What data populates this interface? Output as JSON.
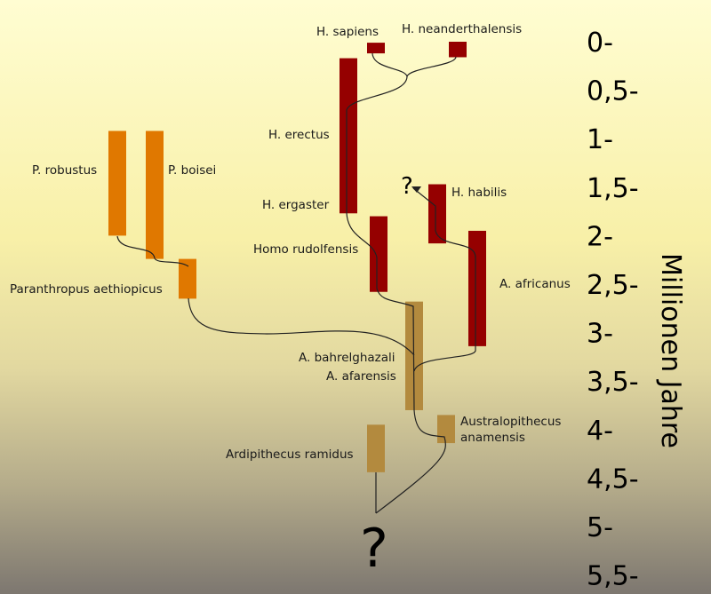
{
  "axis": {
    "label": "Millionen Jahre",
    "ticks": [
      "0-",
      "0,5-",
      "1-",
      "1,5-",
      "2-",
      "2,5-",
      "3-",
      "3,5-",
      "4-",
      "4,5-",
      "5-",
      "5,5-"
    ]
  },
  "colors": {
    "homo": "#950000",
    "paranthropus": "#e07800",
    "australopithecus": "#b38a3e",
    "lines": "#222222"
  },
  "species": [
    {
      "name": "H. sapiens",
      "group": "homo",
      "range_mya": [
        0.01,
        0.12
      ]
    },
    {
      "name": "H. neanderthalensis",
      "group": "homo",
      "range_mya": [
        0.0,
        0.16
      ]
    },
    {
      "name": "H. erectus",
      "group": "homo",
      "range_mya": [
        0.17,
        1.77
      ]
    },
    {
      "name": "H. ergaster",
      "group": "homo",
      "range_mya": null
    },
    {
      "name": "Homo rudolfensis",
      "group": "homo",
      "range_mya": [
        1.8,
        2.58
      ]
    },
    {
      "name": "H. habilis",
      "group": "homo",
      "range_mya": [
        1.47,
        2.08
      ]
    },
    {
      "name": "A. africanus",
      "group": "homo",
      "range_mya": [
        1.95,
        3.14
      ]
    },
    {
      "name": "A. bahrelghazali",
      "group": "australopithecus",
      "range_mya": null
    },
    {
      "name": "A. afarensis",
      "group": "australopithecus",
      "range_mya": [
        2.68,
        3.8
      ]
    },
    {
      "name": "Australopithecus anamensis",
      "group": "australopithecus",
      "range_mya": [
        3.85,
        4.14
      ]
    },
    {
      "name": "Ardipithecus ramidus",
      "group": "australopithecus",
      "range_mya": [
        3.95,
        4.44
      ]
    },
    {
      "name": "P. robustus",
      "group": "paranthropus",
      "range_mya": [
        0.92,
        2.0
      ]
    },
    {
      "name": "P. boisei",
      "group": "paranthropus",
      "range_mya": [
        0.92,
        2.24
      ]
    },
    {
      "name": "Paranthropus aethiopicus",
      "group": "paranthropus",
      "range_mya": [
        2.24,
        2.65
      ]
    }
  ],
  "unknown_marks": [
    "?",
    "?"
  ]
}
